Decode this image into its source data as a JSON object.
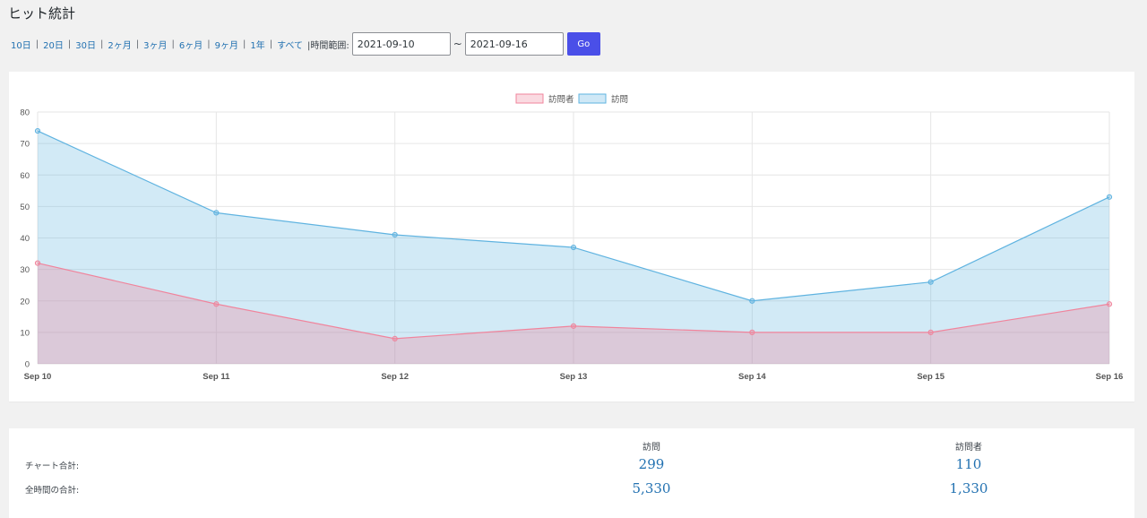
{
  "page": {
    "title": "ヒット統計"
  },
  "ranges": [
    "10日",
    "20日",
    "30日",
    "2ヶ月",
    "3ヶ月",
    "6ヶ月",
    "9ヶ月",
    "1年",
    "すべて"
  ],
  "range_separator": "|",
  "time_range_label": "|時間範囲:",
  "date_from": "2021-09-10",
  "tilde": "~",
  "date_to": "2021-09-16",
  "go_label": "Go",
  "colors": {
    "visits": "#5fb3e0",
    "visitors": "#f0849c",
    "link": "#2271b1",
    "go": "#4a4fe8"
  },
  "chart_data": {
    "type": "area",
    "categories": [
      "Sep 10",
      "Sep 11",
      "Sep 12",
      "Sep 13",
      "Sep 14",
      "Sep 15",
      "Sep 16"
    ],
    "series": [
      {
        "name": "訪問者",
        "values": [
          32,
          19,
          8,
          12,
          10,
          10,
          19
        ]
      },
      {
        "name": "訪問",
        "values": [
          74,
          48,
          41,
          37,
          20,
          26,
          53
        ]
      }
    ],
    "ylim": [
      0,
      80
    ],
    "yticks": [
      "0",
      "10",
      "20",
      "30",
      "40",
      "50",
      "60",
      "70",
      "80"
    ],
    "grid": true,
    "legend": "top-center"
  },
  "stats": {
    "col_visits": "訪問",
    "col_visitors": "訪問者",
    "rows": [
      {
        "label": "チャート合計:",
        "visits": "299",
        "visitors": "110"
      },
      {
        "label": "全時間の合計:",
        "visits": "5,330",
        "visitors": "1,330"
      }
    ]
  }
}
